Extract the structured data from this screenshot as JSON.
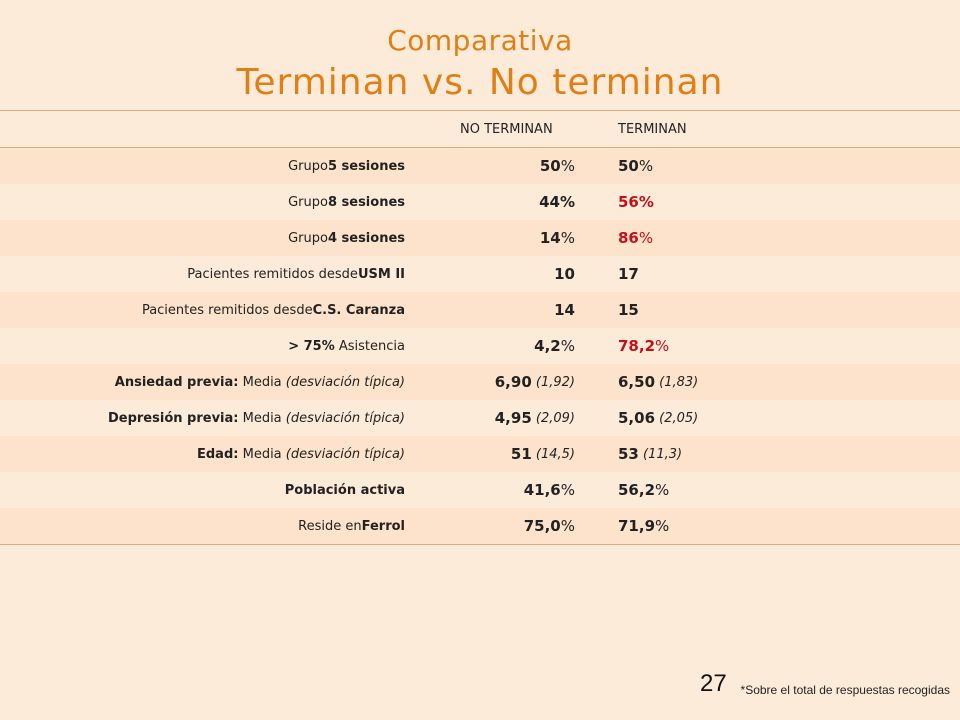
{
  "title": {
    "line1": "Comparativa",
    "line2": "Terminan vs. No terminan"
  },
  "table": {
    "headers": [
      "NO TERMINAN",
      "TERMINAN"
    ],
    "rows": [
      {
        "label_pre": "Grupo ",
        "label_bold": "5 sesiones",
        "label_post": "",
        "label_italic": "",
        "v1_main": "50",
        "v1_unit": "%",
        "v1_paren": "",
        "v2_main": "50",
        "v2_unit": "%",
        "v2_paren": "",
        "v2_color": "#222222"
      },
      {
        "label_pre": "Grupo ",
        "label_bold": "8 sesiones",
        "label_post": "",
        "label_italic": "",
        "v1_main": "44%",
        "v1_unit": "",
        "v1_paren": "",
        "v2_main": "56%",
        "v2_unit": "",
        "v2_paren": "",
        "v2_color": "#c0121b"
      },
      {
        "label_pre": "Grupo ",
        "label_bold": "4 sesiones",
        "label_post": "",
        "label_italic": "",
        "v1_main": "14",
        "v1_unit": "%",
        "v1_paren": "",
        "v2_main": "86",
        "v2_unit": "%",
        "v2_paren": "",
        "v2_color": "#c0121b"
      },
      {
        "label_pre": "Pacientes remitidos desde ",
        "label_bold": "USM II",
        "label_post": "",
        "label_italic": "",
        "v1_main": "10",
        "v1_unit": "",
        "v1_paren": "",
        "v2_main": "17",
        "v2_unit": "",
        "v2_paren": "",
        "v2_color": "#222222"
      },
      {
        "label_pre": "Pacientes remitidos desde ",
        "label_bold": "C.S. Caranza",
        "label_post": "",
        "label_italic": "",
        "v1_main": "14",
        "v1_unit": "",
        "v1_paren": "",
        "v2_main": "15",
        "v2_unit": "",
        "v2_paren": "",
        "v2_color": "#222222"
      },
      {
        "label_pre": "",
        "label_bold": "> 75%",
        "label_post": " Asistencia",
        "label_italic": "",
        "v1_main": "4,2",
        "v1_unit": "%",
        "v1_paren": "",
        "v2_main": "78,2",
        "v2_unit": "%",
        "v2_paren": "",
        "v2_color": "#c0121b"
      },
      {
        "label_pre": "",
        "label_bold": "Ansiedad previa:",
        "label_post": " Media ",
        "label_italic": "(desviación típica)",
        "v1_main": "6,90",
        "v1_unit": "",
        "v1_paren": " (1,92)",
        "v2_main": "6,50",
        "v2_unit": "",
        "v2_paren": " (1,83)",
        "v2_color": "#222222"
      },
      {
        "label_pre": "",
        "label_bold": "Depresión previa:",
        "label_post": " Media ",
        "label_italic": "(desviación típica)",
        "v1_main": "4,95",
        "v1_unit": "",
        "v1_paren": " (2,09)",
        "v2_main": "5,06",
        "v2_unit": "",
        "v2_paren": " (2,05)",
        "v2_color": "#222222"
      },
      {
        "label_pre": "",
        "label_bold": "Edad:",
        "label_post": " Media ",
        "label_italic": "(desviación típica)",
        "v1_main": "51",
        "v1_unit": "",
        "v1_paren": " (14,5)",
        "v2_main": "53",
        "v2_unit": "",
        "v2_paren": " (11,3)",
        "v2_color": "#222222"
      },
      {
        "label_pre": "",
        "label_bold": "Población activa",
        "label_post": "",
        "label_italic": "",
        "v1_main": "41,6",
        "v1_unit": "%",
        "v1_paren": "",
        "v2_main": "56,2",
        "v2_unit": "%",
        "v2_paren": "",
        "v2_color": "#222222"
      },
      {
        "label_pre": "Reside en ",
        "label_bold": "Ferrol",
        "label_post": "",
        "label_italic": "",
        "v1_main": "75,0",
        "v1_unit": "%",
        "v1_paren": "",
        "v2_main": "71,9",
        "v2_unit": "%",
        "v2_paren": "",
        "v2_color": "#222222"
      }
    ]
  },
  "page_number": "27",
  "footnote": "*Sobre el total de respuestas recogidas"
}
